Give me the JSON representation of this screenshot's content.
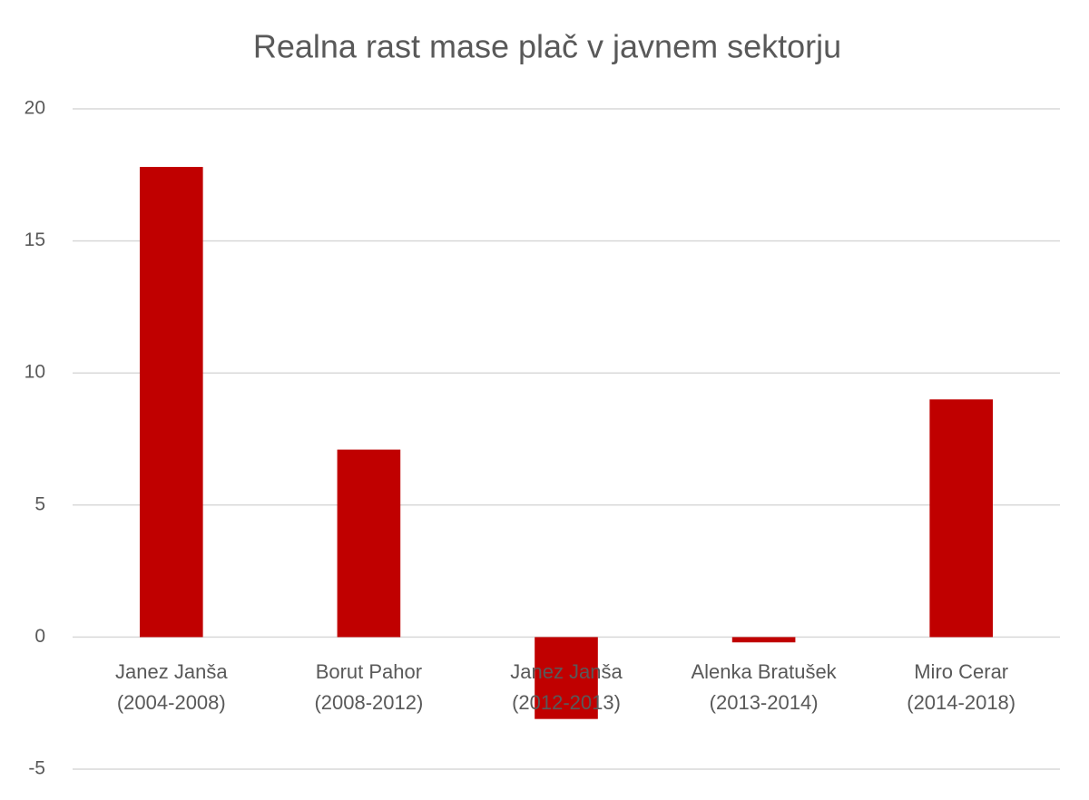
{
  "chart_data": {
    "type": "bar",
    "title": "Realna rast mase plač v javnem sektorju",
    "categories": [
      [
        "Janez Janša",
        "(2004-2008)"
      ],
      [
        "Borut Pahor",
        "(2008-2012)"
      ],
      [
        "Janez Janša",
        "(2012-2013)"
      ],
      [
        "Alenka Bratušek",
        "(2013-2014)"
      ],
      [
        "Miro Cerar",
        "(2014-2018)"
      ]
    ],
    "values": [
      17.8,
      7.1,
      -3.1,
      -0.2,
      9.0
    ],
    "color": "#c00000",
    "ylim": [
      -5,
      20
    ],
    "yticks": [
      -5,
      0,
      5,
      10,
      15,
      20
    ],
    "grid": true
  }
}
